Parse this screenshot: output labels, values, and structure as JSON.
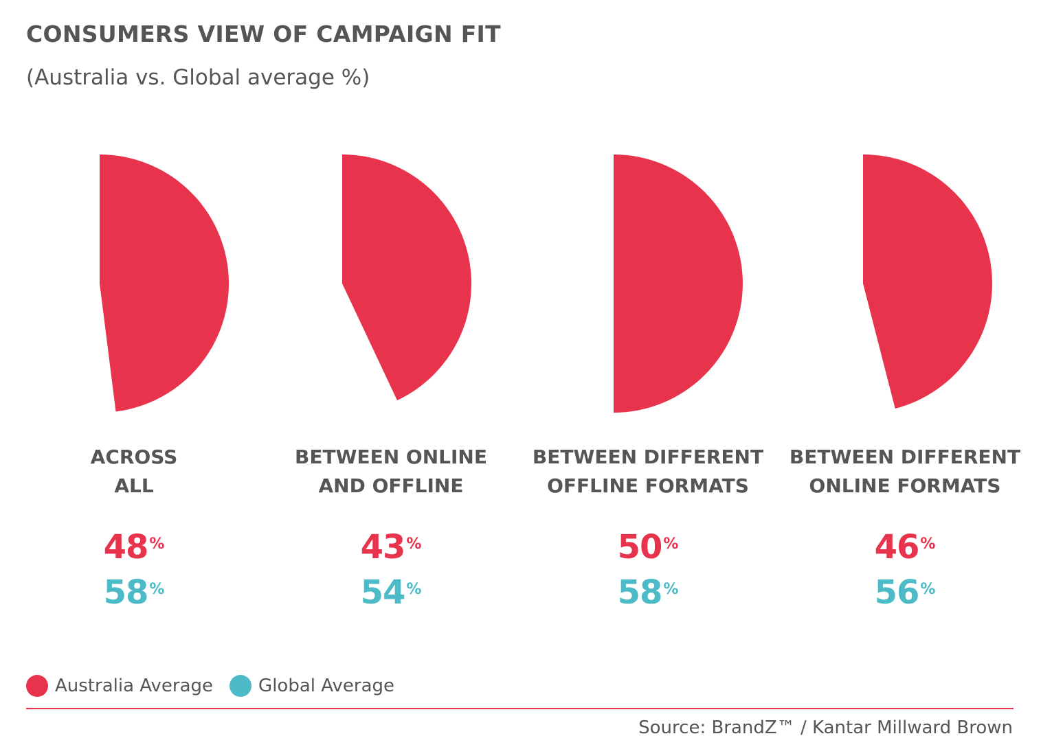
{
  "title": "CONSUMERS VIEW OF CAMPAIGN FIT",
  "subtitle": "(Australia vs. Global average %)",
  "colors": {
    "australia": "#e8334c",
    "global": "#4cbac7",
    "text": "#555555"
  },
  "chart_data": {
    "type": "pie",
    "title": "CONSUMERS VIEW OF CAMPAIGN FIT",
    "subtitle": "(Australia vs. Global average %)",
    "categories": [
      {
        "line1": "ACROSS",
        "line2": "ALL"
      },
      {
        "line1": "BETWEEN ONLINE",
        "line2": "AND OFFLINE"
      },
      {
        "line1": "BETWEEN DIFFERENT",
        "line2": "OFFLINE FORMATS"
      },
      {
        "line1": "BETWEEN DIFFERENT",
        "line2": "ONLINE FORMATS"
      }
    ],
    "series": [
      {
        "name": "Australia Average",
        "values": [
          48,
          43,
          50,
          46
        ]
      },
      {
        "name": "Global Average",
        "values": [
          58,
          54,
          58,
          56
        ]
      }
    ],
    "unit": "%",
    "legend_position": "bottom-left"
  },
  "legend": [
    "Australia Average",
    "Global Average"
  ],
  "source": "Source: BrandZ™ / Kantar Millward Brown"
}
